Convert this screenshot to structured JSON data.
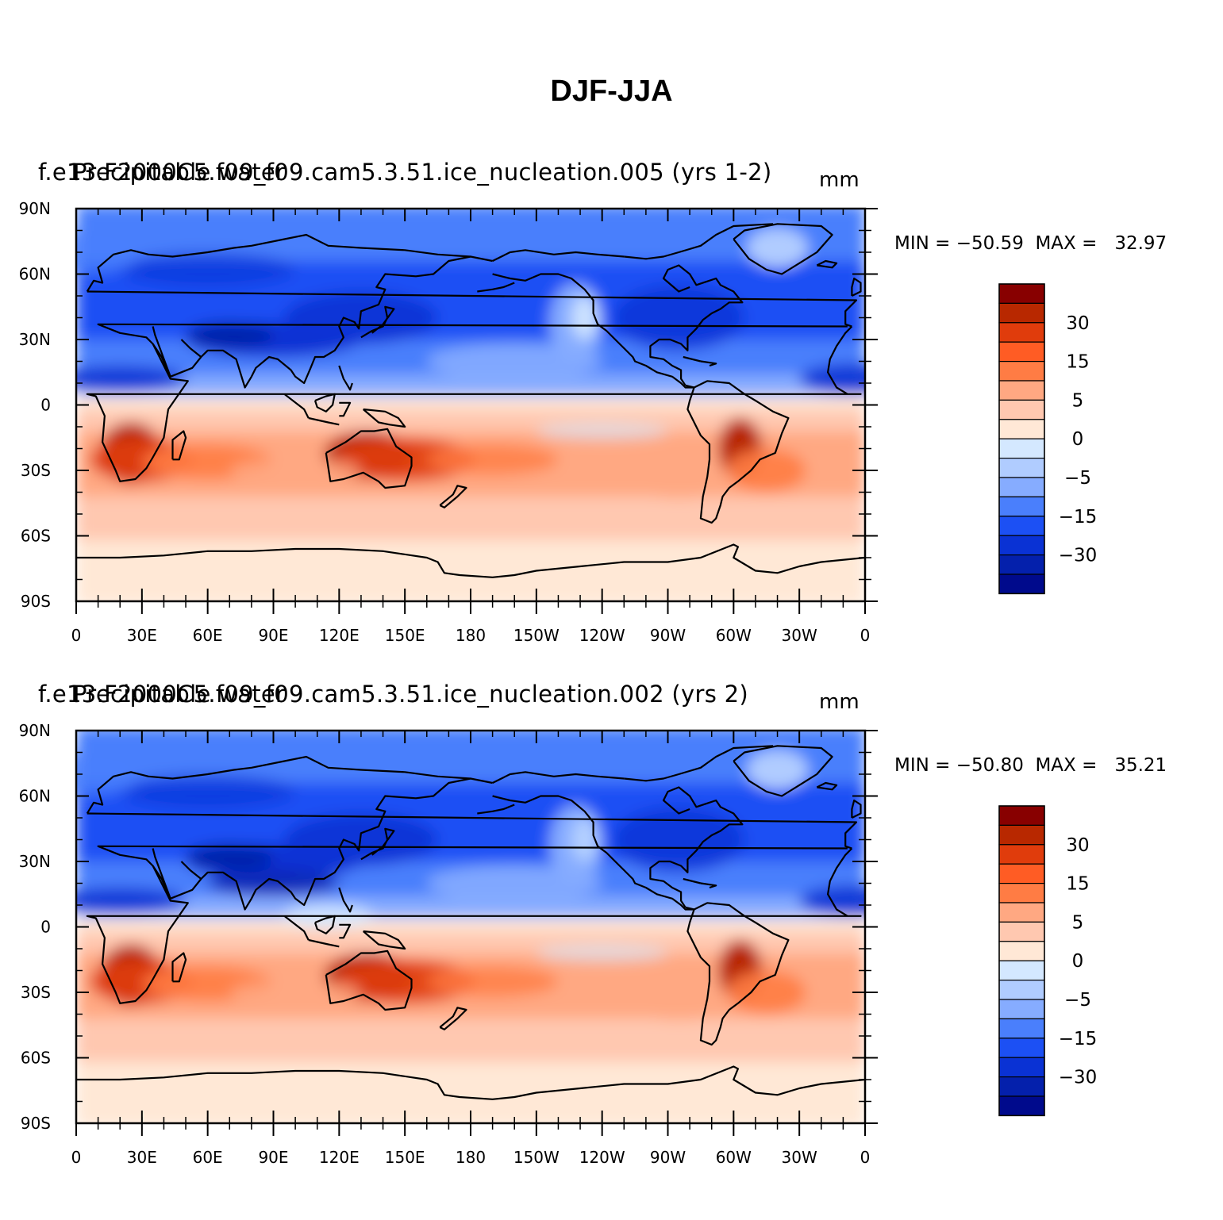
{
  "title": "DJF-JJA",
  "panels": [
    {
      "case_title": "f.e13.F2000C5.f09_f09.cam5.3.51.ice_nucleation.005 (yrs 1-2)",
      "var_title": "Precipitable water",
      "units": "mm",
      "minmax": "MIN = −50.59  MAX =   32.97"
    },
    {
      "case_title": "f.e13.F2000C5.f09_f09.cam5.3.51.ice_nucleation.002 (yrs 2)",
      "var_title": "Precipitable water",
      "units": "mm",
      "minmax": "MIN = −50.80  MAX =   35.21"
    }
  ],
  "lat_labels": [
    "90N",
    "60N",
    "30N",
    "0",
    "30S",
    "60S",
    "90S"
  ],
  "lon_labels": [
    "0",
    "30E",
    "60E",
    "90E",
    "120E",
    "150E",
    "180",
    "150W",
    "120W",
    "90W",
    "60W",
    "30W",
    "0"
  ],
  "colorbar": {
    "labels": [
      "30",
      "15",
      "5",
      "0",
      "−5",
      "−15",
      "−30"
    ],
    "colors": [
      "#880000",
      "#b82800",
      "#e03c0c",
      "#ff5c24",
      "#ff7c44",
      "#ffa882",
      "#ffc8b0",
      "#ffe8d6",
      "#d4e8ff",
      "#b0ccff",
      "#86acff",
      "#4a7ffc",
      "#1c50f4",
      "#0a32d4",
      "#0420ac",
      "#000a8c"
    ]
  },
  "chart_data": {
    "type": "heatmap",
    "variable": "Precipitable water",
    "units": "mm",
    "season_difference": "DJF-JJA",
    "contour_levels": [
      "30",
      "15",
      "5",
      "0",
      "−5",
      "−15",
      "−30"
    ],
    "panels": [
      {
        "case": "f.e13.F2000C5.f09_f09.cam5.3.51.ice_nucleation.005 (yrs 1-2)",
        "min": -50.59,
        "max": 32.97
      },
      {
        "case": "f.e13.F2000C5.f09_f09.cam5.3.51.ice_nucleation.002 (yrs 2)",
        "min": -50.8,
        "max": 35.21
      }
    ]
  }
}
